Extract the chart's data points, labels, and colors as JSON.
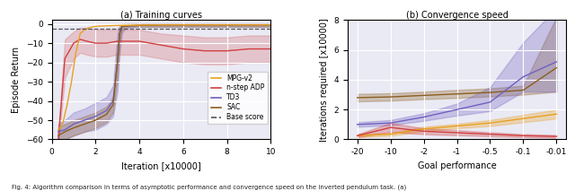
{
  "left_subtitle": "(a) Training curves",
  "right_subtitle": "(b) Convergence speed",
  "fig_caption": "Fig. 4: Algorithm comparison in terms of asymptotic performance and convergence speed on the inverted pendulum task. (a)",
  "left": {
    "xlabel": "Iteration [x10000]",
    "ylabel": "Episode Return",
    "xlim": [
      0,
      10
    ],
    "ylim": [
      -60,
      2
    ],
    "xticks": [
      0,
      2,
      4,
      6,
      8,
      10
    ],
    "yticks": [
      -60,
      -50,
      -40,
      -30,
      -20,
      -10,
      0
    ],
    "base_score": -2.5,
    "bg_color": "#eaeaf4",
    "colors": {
      "MPG-v2": "#e8a020",
      "n-step ADP": "#d04040",
      "TD3": "#7060c0",
      "SAC": "#8b5e20"
    },
    "MPG_x": [
      0.3,
      0.5,
      0.7,
      0.9,
      1.1,
      1.3,
      1.5,
      1.7,
      1.9,
      2.1,
      2.5,
      3.0,
      4.0,
      5.0,
      6.0,
      7.0,
      8.0,
      9.0,
      10.0
    ],
    "MPG_y": [
      -55,
      -52,
      -42,
      -30,
      -15,
      -5,
      -3,
      -2,
      -1.5,
      -1.2,
      -1.0,
      -0.8,
      -0.6,
      -0.5,
      -0.5,
      -0.5,
      -0.5,
      -0.5,
      -0.5
    ],
    "MPG_lo": [
      -58,
      -56,
      -48,
      -36,
      -20,
      -8,
      -5,
      -4,
      -3,
      -2.5,
      -2,
      -1.5,
      -1.5,
      -1.5,
      -1.5,
      -1.5,
      -1.5,
      -1.5,
      -1.5
    ],
    "MPG_hi": [
      -52,
      -48,
      -36,
      -24,
      -10,
      -2,
      -1,
      -0.5,
      -0.3,
      -0.2,
      -0.1,
      -0.1,
      -0.1,
      -0.1,
      -0.1,
      -0.1,
      -0.1,
      -0.1,
      -0.1
    ],
    "nADP_x": [
      0.3,
      0.6,
      1.0,
      1.3,
      1.6,
      2.0,
      2.5,
      3.0,
      3.5,
      4.0,
      5.0,
      6.0,
      7.0,
      8.0,
      9.0,
      10.0
    ],
    "nADP_y": [
      -60,
      -18,
      -10,
      -8,
      -9,
      -10,
      -10,
      -9,
      -9,
      -9,
      -11,
      -13,
      -14,
      -14,
      -13,
      -13
    ],
    "nADP_lo": [
      -62,
      -28,
      -18,
      -15,
      -16,
      -17,
      -17,
      -16,
      -16,
      -16,
      -18,
      -20,
      -21,
      -21,
      -20,
      -20
    ],
    "nADP_hi": [
      -56,
      -8,
      -4,
      -2,
      -2,
      -3,
      -3,
      -3,
      -3,
      -3,
      -5,
      -6,
      -7,
      -7,
      -6,
      -6
    ],
    "TD3_x": [
      0.3,
      0.6,
      1.0,
      1.5,
      2.0,
      2.5,
      2.8,
      3.0,
      3.1,
      3.2,
      3.3,
      3.5,
      4.0,
      5.0,
      6.0,
      7.0,
      8.0,
      9.0,
      10.0
    ],
    "TD3_y": [
      -56,
      -55,
      -52,
      -50,
      -48,
      -45,
      -40,
      -20,
      -5,
      -1.5,
      -1.2,
      -1.0,
      -0.8,
      -0.5,
      -0.5,
      -0.5,
      -0.5,
      -0.5,
      -0.5
    ],
    "TD3_lo": [
      -60,
      -60,
      -58,
      -56,
      -55,
      -52,
      -48,
      -35,
      -15,
      -5,
      -3,
      -2,
      -1.5,
      -1.5,
      -1.5,
      -1.5,
      -1.5,
      -1.5,
      -1.5
    ],
    "TD3_hi": [
      -52,
      -50,
      -46,
      -44,
      -41,
      -38,
      -32,
      -5,
      -0.3,
      -0.1,
      -0.1,
      -0.1,
      -0.1,
      -0.1,
      -0.1,
      -0.1,
      -0.1,
      -0.1,
      -0.1
    ],
    "SAC_x": [
      0.3,
      0.6,
      1.0,
      1.5,
      2.0,
      2.5,
      2.8,
      3.0,
      3.1,
      3.2,
      3.3,
      3.5,
      4.0,
      5.0,
      6.0,
      7.0,
      8.0,
      9.0,
      10.0
    ],
    "SAC_y": [
      -58,
      -56,
      -54,
      -52,
      -50,
      -47,
      -42,
      -20,
      -5,
      -1.5,
      -1.2,
      -1.0,
      -0.8,
      -0.5,
      -0.5,
      -0.5,
      -0.5,
      -0.5,
      -0.5
    ],
    "SAC_lo": [
      -62,
      -60,
      -58,
      -56,
      -54,
      -51,
      -46,
      -28,
      -10,
      -3,
      -2,
      -1.5,
      -1.5,
      -1.5,
      -1.5,
      -1.5,
      -1.5,
      -1.5,
      -1.5
    ],
    "SAC_hi": [
      -54,
      -52,
      -50,
      -48,
      -46,
      -43,
      -38,
      -12,
      -2,
      -0.3,
      -0.2,
      -0.1,
      -0.1,
      -0.1,
      -0.1,
      -0.1,
      -0.1,
      -0.1,
      -0.1
    ]
  },
  "right": {
    "xlabel": "Goal performance",
    "ylabel": "Iterations required [x10000]",
    "xlim_labels": [
      "-20",
      "-10",
      "-2",
      "-1",
      "-0.5",
      "-0.1",
      "-0.01"
    ],
    "ylim": [
      0,
      8
    ],
    "yticks": [
      0,
      2,
      4,
      6,
      8
    ],
    "bg_color": "#eaeaf4",
    "colors": {
      "MPG-v2": "#e8a020",
      "n-step ADP": "#d04040",
      "TD3": "#7060c0",
      "SAC": "#8b5e20"
    },
    "x_numeric": [
      0,
      1,
      2,
      3,
      4,
      5,
      6
    ],
    "MPG_mean": [
      0.25,
      0.35,
      0.7,
      0.9,
      1.1,
      1.4,
      1.7
    ],
    "MPG_lo": [
      0.15,
      0.25,
      0.55,
      0.75,
      0.9,
      1.15,
      1.4
    ],
    "MPG_hi": [
      0.35,
      0.45,
      0.85,
      1.05,
      1.3,
      1.65,
      2.0
    ],
    "nADP_mean": [
      0.25,
      0.8,
      0.55,
      0.45,
      0.35,
      0.25,
      0.2
    ],
    "nADP_lo": [
      0.15,
      0.5,
      0.35,
      0.28,
      0.22,
      0.15,
      0.1
    ],
    "nADP_hi": [
      0.35,
      1.1,
      0.75,
      0.62,
      0.48,
      0.35,
      0.3
    ],
    "TD3_mean": [
      1.0,
      1.1,
      1.5,
      2.0,
      2.5,
      4.2,
      5.2
    ],
    "TD3_lo": [
      0.85,
      0.95,
      1.25,
      1.6,
      1.9,
      3.2,
      3.2
    ],
    "TD3_hi": [
      1.15,
      1.3,
      1.75,
      2.4,
      3.5,
      6.5,
      8.8
    ],
    "SAC_mean": [
      2.8,
      2.85,
      2.95,
      3.05,
      3.15,
      3.3,
      4.8
    ],
    "SAC_lo": [
      2.55,
      2.6,
      2.7,
      2.78,
      2.88,
      3.0,
      3.2
    ],
    "SAC_hi": [
      3.05,
      3.1,
      3.2,
      3.32,
      3.42,
      3.6,
      8.2
    ]
  }
}
